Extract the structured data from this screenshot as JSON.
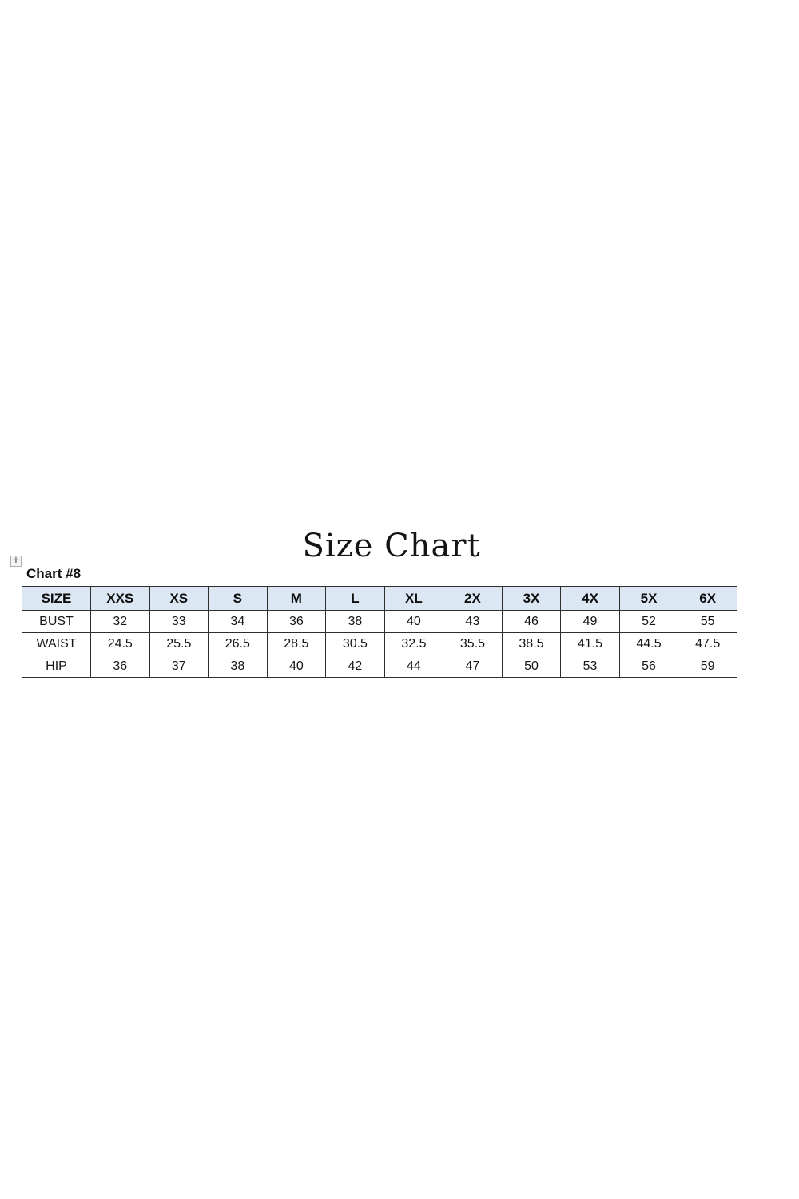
{
  "page": {
    "title": "Size Chart",
    "chart_label": "Chart #8"
  },
  "icons": {
    "table_move_handle": "✛"
  },
  "colors": {
    "header_row_bg": "#dbe7f2",
    "table_border": "#2e2e2e",
    "text": "#1a1a1a",
    "page_bg": "#ffffff"
  },
  "chart_data": {
    "type": "table",
    "title": "Size Chart",
    "columns": [
      "SIZE",
      "XXS",
      "XS",
      "S",
      "M",
      "L",
      "XL",
      "2X",
      "3X",
      "4X",
      "5X",
      "6X"
    ],
    "rows": [
      {
        "label": "BUST",
        "values": [
          "32",
          "33",
          "34",
          "36",
          "38",
          "40",
          "43",
          "46",
          "49",
          "52",
          "55"
        ]
      },
      {
        "label": "WAIST",
        "values": [
          "24.5",
          "25.5",
          "26.5",
          "28.5",
          "30.5",
          "32.5",
          "35.5",
          "38.5",
          "41.5",
          "44.5",
          "47.5"
        ]
      },
      {
        "label": "HIP",
        "values": [
          "36",
          "37",
          "38",
          "40",
          "42",
          "44",
          "47",
          "50",
          "53",
          "56",
          "59"
        ]
      }
    ]
  }
}
